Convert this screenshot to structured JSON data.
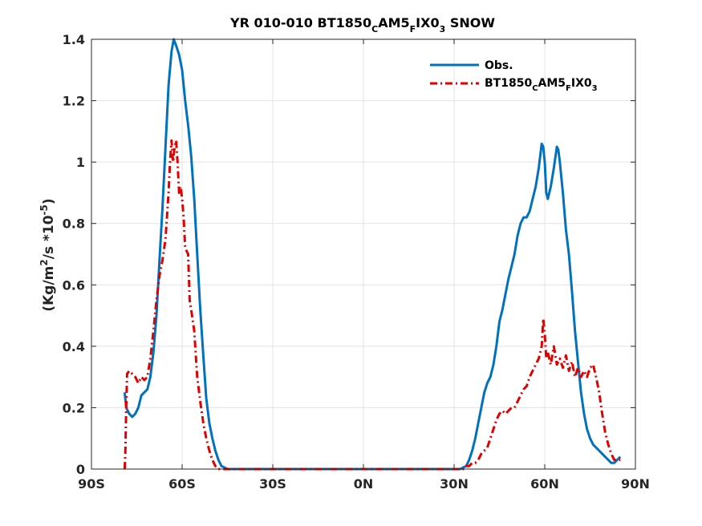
{
  "chart_data": {
    "type": "line",
    "title": {
      "pre": "YR 010-010 BT1850",
      "s1": "C",
      "mid": "AM5",
      "s2": "F",
      "post": "IX0",
      "s3": "3",
      "tail": " SNOW"
    },
    "ylabel": {
      "pre": "(Kg/m",
      "sup1": "2",
      "mid": "/s *10",
      "sup2": "-5",
      "post": ")"
    },
    "xlabel": "",
    "xlim": [
      -90,
      90
    ],
    "ylim": [
      0,
      1.4
    ],
    "xticks": [
      -90,
      -60,
      -30,
      0,
      30,
      60,
      90
    ],
    "xtick_labels": [
      "90S",
      "60S",
      "30S",
      "0N",
      "30N",
      "60N",
      "90N"
    ],
    "yticks": [
      0,
      0.2,
      0.4,
      0.6,
      0.8,
      1.0,
      1.2,
      1.4
    ],
    "ytick_labels": [
      "0",
      "0.2",
      "0.4",
      "0.6",
      "0.8",
      "1",
      "1.2",
      "1.4"
    ],
    "grid": true,
    "legend_position": "top-right",
    "series": [
      {
        "name": "Obs.",
        "color": "#0072BD",
        "style": "solid",
        "points": [
          [
            -79,
            0.25
          ],
          [
            -78.5,
            0.2
          ],
          [
            -77.5,
            0.18
          ],
          [
            -76.5,
            0.17
          ],
          [
            -75.5,
            0.18
          ],
          [
            -74.5,
            0.2
          ],
          [
            -73.5,
            0.24
          ],
          [
            -72.5,
            0.25
          ],
          [
            -71.5,
            0.26
          ],
          [
            -70.5,
            0.3
          ],
          [
            -69.5,
            0.38
          ],
          [
            -68.5,
            0.5
          ],
          [
            -67.5,
            0.68
          ],
          [
            -66.5,
            0.85
          ],
          [
            -65.5,
            1.05
          ],
          [
            -64.5,
            1.25
          ],
          [
            -63.5,
            1.36
          ],
          [
            -62.8,
            1.4
          ],
          [
            -62,
            1.38
          ],
          [
            -61,
            1.35
          ],
          [
            -60,
            1.3
          ],
          [
            -59,
            1.2
          ],
          [
            -58,
            1.12
          ],
          [
            -57,
            1.02
          ],
          [
            -56,
            0.88
          ],
          [
            -55,
            0.7
          ],
          [
            -54,
            0.52
          ],
          [
            -53,
            0.37
          ],
          [
            -52,
            0.23
          ],
          [
            -51,
            0.15
          ],
          [
            -50,
            0.1
          ],
          [
            -49,
            0.06
          ],
          [
            -48,
            0.03
          ],
          [
            -47,
            0.01
          ],
          [
            -45,
            0.0
          ],
          [
            -40,
            0.0
          ],
          [
            -30,
            0.0
          ],
          [
            -20,
            0.0
          ],
          [
            -10,
            0.0
          ],
          [
            0,
            0.0
          ],
          [
            10,
            0.0
          ],
          [
            20,
            0.0
          ],
          [
            30,
            0.0
          ],
          [
            32,
            0.0
          ],
          [
            34,
            0.01
          ],
          [
            35,
            0.03
          ],
          [
            36,
            0.06
          ],
          [
            37,
            0.1
          ],
          [
            38,
            0.15
          ],
          [
            39,
            0.2
          ],
          [
            40,
            0.25
          ],
          [
            41,
            0.28
          ],
          [
            42,
            0.3
          ],
          [
            43,
            0.34
          ],
          [
            44,
            0.4
          ],
          [
            45,
            0.48
          ],
          [
            46,
            0.52
          ],
          [
            47,
            0.57
          ],
          [
            48,
            0.62
          ],
          [
            49,
            0.66
          ],
          [
            50,
            0.7
          ],
          [
            51,
            0.76
          ],
          [
            52,
            0.8
          ],
          [
            53,
            0.82
          ],
          [
            54,
            0.82
          ],
          [
            55,
            0.84
          ],
          [
            56,
            0.88
          ],
          [
            57,
            0.92
          ],
          [
            58,
            0.98
          ],
          [
            59,
            1.06
          ],
          [
            59.5,
            1.05
          ],
          [
            60,
            1.0
          ],
          [
            60.5,
            0.9
          ],
          [
            61,
            0.88
          ],
          [
            62,
            0.92
          ],
          [
            63,
            0.98
          ],
          [
            64,
            1.05
          ],
          [
            64.5,
            1.04
          ],
          [
            65,
            1.0
          ],
          [
            66,
            0.9
          ],
          [
            67,
            0.78
          ],
          [
            68,
            0.7
          ],
          [
            69,
            0.58
          ],
          [
            70,
            0.45
          ],
          [
            71,
            0.35
          ],
          [
            72,
            0.25
          ],
          [
            73,
            0.18
          ],
          [
            74,
            0.13
          ],
          [
            75,
            0.1
          ],
          [
            76,
            0.08
          ],
          [
            77,
            0.07
          ],
          [
            78,
            0.06
          ],
          [
            79,
            0.05
          ],
          [
            80,
            0.04
          ],
          [
            81,
            0.03
          ],
          [
            82,
            0.02
          ],
          [
            83,
            0.02
          ],
          [
            84,
            0.03
          ],
          [
            85,
            0.04
          ]
        ]
      },
      {
        "name": "BT1850CAM5FIX03",
        "color": "#E00000",
        "style": "dashdot",
        "points": [
          [
            -79,
            0.0
          ],
          [
            -78.8,
            0.05
          ],
          [
            -78.5,
            0.2
          ],
          [
            -78.2,
            0.31
          ],
          [
            -77.5,
            0.32
          ],
          [
            -76.5,
            0.31
          ],
          [
            -75.5,
            0.3
          ],
          [
            -74.5,
            0.28
          ],
          [
            -73.5,
            0.3
          ],
          [
            -72.5,
            0.29
          ],
          [
            -71.5,
            0.3
          ],
          [
            -70.5,
            0.36
          ],
          [
            -69.5,
            0.45
          ],
          [
            -68.5,
            0.55
          ],
          [
            -67.5,
            0.63
          ],
          [
            -66.5,
            0.68
          ],
          [
            -65.5,
            0.75
          ],
          [
            -64.5,
            0.9
          ],
          [
            -64,
            1.0
          ],
          [
            -63.5,
            1.07
          ],
          [
            -63,
            1.0
          ],
          [
            -62.5,
            1.05
          ],
          [
            -62,
            1.07
          ],
          [
            -61.5,
            1.0
          ],
          [
            -61,
            0.9
          ],
          [
            -60.5,
            0.92
          ],
          [
            -60,
            0.88
          ],
          [
            -59.5,
            0.82
          ],
          [
            -59,
            0.72
          ],
          [
            -58,
            0.7
          ],
          [
            -57.5,
            0.55
          ],
          [
            -57,
            0.52
          ],
          [
            -56,
            0.45
          ],
          [
            -55,
            0.3
          ],
          [
            -54,
            0.22
          ],
          [
            -53,
            0.15
          ],
          [
            -52,
            0.1
          ],
          [
            -51,
            0.06
          ],
          [
            -50,
            0.03
          ],
          [
            -49,
            0.01
          ],
          [
            -48,
            0.0
          ],
          [
            -40,
            0.0
          ],
          [
            -30,
            0.0
          ],
          [
            -20,
            0.0
          ],
          [
            -10,
            0.0
          ],
          [
            0,
            0.0
          ],
          [
            10,
            0.0
          ],
          [
            20,
            0.0
          ],
          [
            30,
            0.0
          ],
          [
            33,
            0.0
          ],
          [
            34,
            0.01
          ],
          [
            35,
            0.01
          ],
          [
            36,
            0.02
          ],
          [
            37,
            0.02
          ],
          [
            38,
            0.03
          ],
          [
            39,
            0.05
          ],
          [
            40,
            0.06
          ],
          [
            41,
            0.07
          ],
          [
            42,
            0.1
          ],
          [
            43,
            0.13
          ],
          [
            44,
            0.16
          ],
          [
            45,
            0.18
          ],
          [
            46,
            0.19
          ],
          [
            47,
            0.18
          ],
          [
            48,
            0.19
          ],
          [
            49,
            0.2
          ],
          [
            50,
            0.2
          ],
          [
            51,
            0.22
          ],
          [
            52,
            0.24
          ],
          [
            53,
            0.26
          ],
          [
            54,
            0.27
          ],
          [
            55,
            0.3
          ],
          [
            56,
            0.32
          ],
          [
            57,
            0.34
          ],
          [
            58,
            0.36
          ],
          [
            59,
            0.4
          ],
          [
            59.5,
            0.49
          ],
          [
            60,
            0.44
          ],
          [
            60.5,
            0.36
          ],
          [
            61,
            0.38
          ],
          [
            62,
            0.34
          ],
          [
            63,
            0.4
          ],
          [
            64,
            0.34
          ],
          [
            65,
            0.36
          ],
          [
            66,
            0.33
          ],
          [
            67,
            0.37
          ],
          [
            68,
            0.32
          ],
          [
            69,
            0.35
          ],
          [
            70,
            0.3
          ],
          [
            71,
            0.33
          ],
          [
            72,
            0.3
          ],
          [
            73,
            0.32
          ],
          [
            74,
            0.3
          ],
          [
            75,
            0.33
          ],
          [
            76,
            0.34
          ],
          [
            77,
            0.3
          ],
          [
            78,
            0.25
          ],
          [
            79,
            0.18
          ],
          [
            80,
            0.12
          ],
          [
            81,
            0.08
          ],
          [
            82,
            0.05
          ],
          [
            83,
            0.03
          ],
          [
            84,
            0.03
          ],
          [
            85,
            0.03
          ]
        ]
      }
    ],
    "legend": {
      "obs_label": "Obs.",
      "model_label": {
        "pre": "BT1850",
        "s1": "C",
        "mid": "AM5",
        "s2": "F",
        "post": "IX0",
        "s3": "3"
      }
    }
  }
}
